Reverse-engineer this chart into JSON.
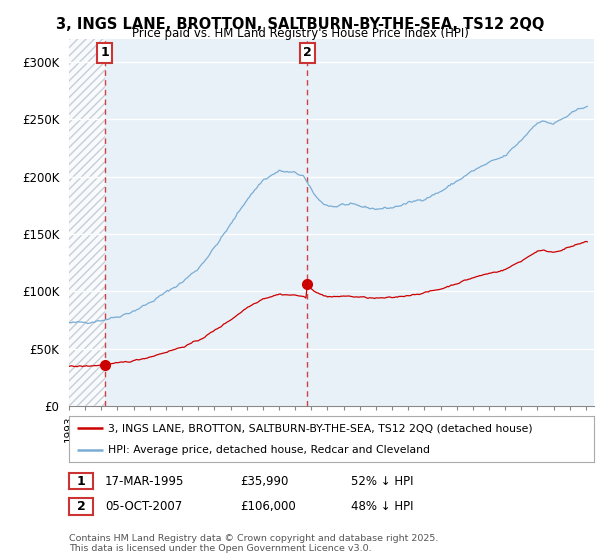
{
  "title_line1": "3, INGS LANE, BROTTON, SALTBURN-BY-THE-SEA, TS12 2QQ",
  "title_line2": "Price paid vs. HM Land Registry's House Price Index (HPI)",
  "legend_label_red": "3, INGS LANE, BROTTON, SALTBURN-BY-THE-SEA, TS12 2QQ (detached house)",
  "legend_label_blue": "HPI: Average price, detached house, Redcar and Cleveland",
  "annotation1_label": "1",
  "annotation1_date": "17-MAR-1995",
  "annotation1_price": "£35,990",
  "annotation1_hpi": "52% ↓ HPI",
  "annotation2_label": "2",
  "annotation2_date": "05-OCT-2007",
  "annotation2_price": "£106,000",
  "annotation2_hpi": "48% ↓ HPI",
  "copyright_text": "Contains HM Land Registry data © Crown copyright and database right 2025.\nThis data is licensed under the Open Government Licence v3.0.",
  "red_color": "#cc0000",
  "blue_color": "#7aadd4",
  "dashed_line_color": "#cc4444",
  "background_color": "#ffffff",
  "plot_bg_color": "#e8f0f8",
  "hatch_bg_color": "#dde8f0",
  "ylim": [
    0,
    320000
  ],
  "yticks": [
    0,
    50000,
    100000,
    150000,
    200000,
    250000,
    300000
  ],
  "ytick_labels": [
    "£0",
    "£50K",
    "£100K",
    "£150K",
    "£200K",
    "£250K",
    "£300K"
  ],
  "sale1_year": 1995.21,
  "sale1_price": 35990,
  "sale2_year": 2007.76,
  "sale2_price": 106000
}
